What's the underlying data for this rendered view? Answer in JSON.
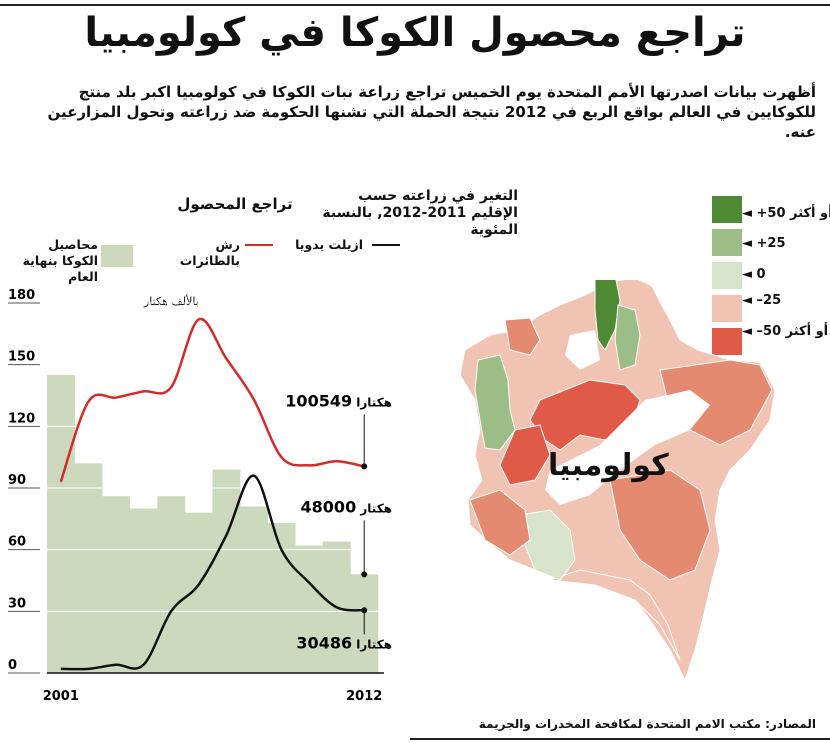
{
  "title": "تراجع محصول الكوكا في كولومبيا",
  "intro": "أظهرت بيانات اصدرتها الأمم المتحدة يوم الخميس تراجع زراعة نبات الكوكا في كولومبيا اكبر بلد منتج للكوكايين في العالم بواقع الربع في 2012 نتيجة الحملة التي تشنها الحكومة ضد زراعته وتحول المزارعين عنه.",
  "chart_data": {
    "type": "line",
    "title": "تراجع المحصول",
    "unit_label": "بالألف هكتار",
    "ylim": [
      0,
      180
    ],
    "y_ticks": [
      0,
      30,
      60,
      90,
      120,
      150,
      180
    ],
    "x_tick_labels": [
      "2001",
      "2012"
    ],
    "x": [
      2001,
      2002,
      2003,
      2004,
      2005,
      2006,
      2007,
      2008,
      2009,
      2010,
      2011,
      2012
    ],
    "legend": {
      "bars": "محاصيل الكوكا بنهاية العام",
      "red": "رش بالطائرات",
      "black": "ازيلت يدويا"
    },
    "bars": {
      "name": "محاصيل الكوكا بنهاية العام",
      "values": [
        145,
        102,
        86,
        80,
        86,
        78,
        99,
        81,
        73,
        62,
        64,
        48
      ],
      "color": "#ccd9bd"
    },
    "series": [
      {
        "name": "رش بالطائرات",
        "color": "#d42a2a",
        "points": [
          [
            2001,
            93
          ],
          [
            2002,
            132
          ],
          [
            2003,
            134
          ],
          [
            2004,
            137
          ],
          [
            2005,
            139
          ],
          [
            2006,
            172
          ],
          [
            2007,
            153
          ],
          [
            2008,
            133
          ],
          [
            2009,
            105
          ],
          [
            2010,
            101
          ],
          [
            2011,
            103
          ],
          [
            2012,
            100.5
          ]
        ]
      },
      {
        "name": "ازيلت يدويا",
        "color": "#111111",
        "points": [
          [
            2001,
            2
          ],
          [
            2002,
            2
          ],
          [
            2003,
            4
          ],
          [
            2004,
            4
          ],
          [
            2005,
            30
          ],
          [
            2006,
            43
          ],
          [
            2007,
            67
          ],
          [
            2008,
            96
          ],
          [
            2009,
            60
          ],
          [
            2010,
            44
          ],
          [
            2011,
            32
          ],
          [
            2012,
            30.5
          ]
        ]
      }
    ],
    "annotations": [
      {
        "value": "100549",
        "unit": "هكتارا"
      },
      {
        "value": "48000",
        "unit": "هكتار"
      },
      {
        "value": "30486",
        "unit": "هكتارا"
      }
    ]
  },
  "map": {
    "title": "التغير في زراعته حسب الإقليم 2011-2012, بالنسبة المئوية",
    "country_label": "كولومبيا",
    "legend": [
      {
        "label": "+50 أو أكثر",
        "color": "#4e8a33"
      },
      {
        "label": "+25",
        "color": "#9dbd87"
      },
      {
        "label": "0",
        "color": "#d8e3cc"
      },
      {
        "label": "–25",
        "color": "#f1c3b2"
      },
      {
        "label": "–50 أو أكثر",
        "color": "#e05a48"
      }
    ],
    "mid_color": "#e48a70"
  },
  "sources": "المصادر: مكتب الامم المتحدة لمكافحة المخدرات والجريمة"
}
